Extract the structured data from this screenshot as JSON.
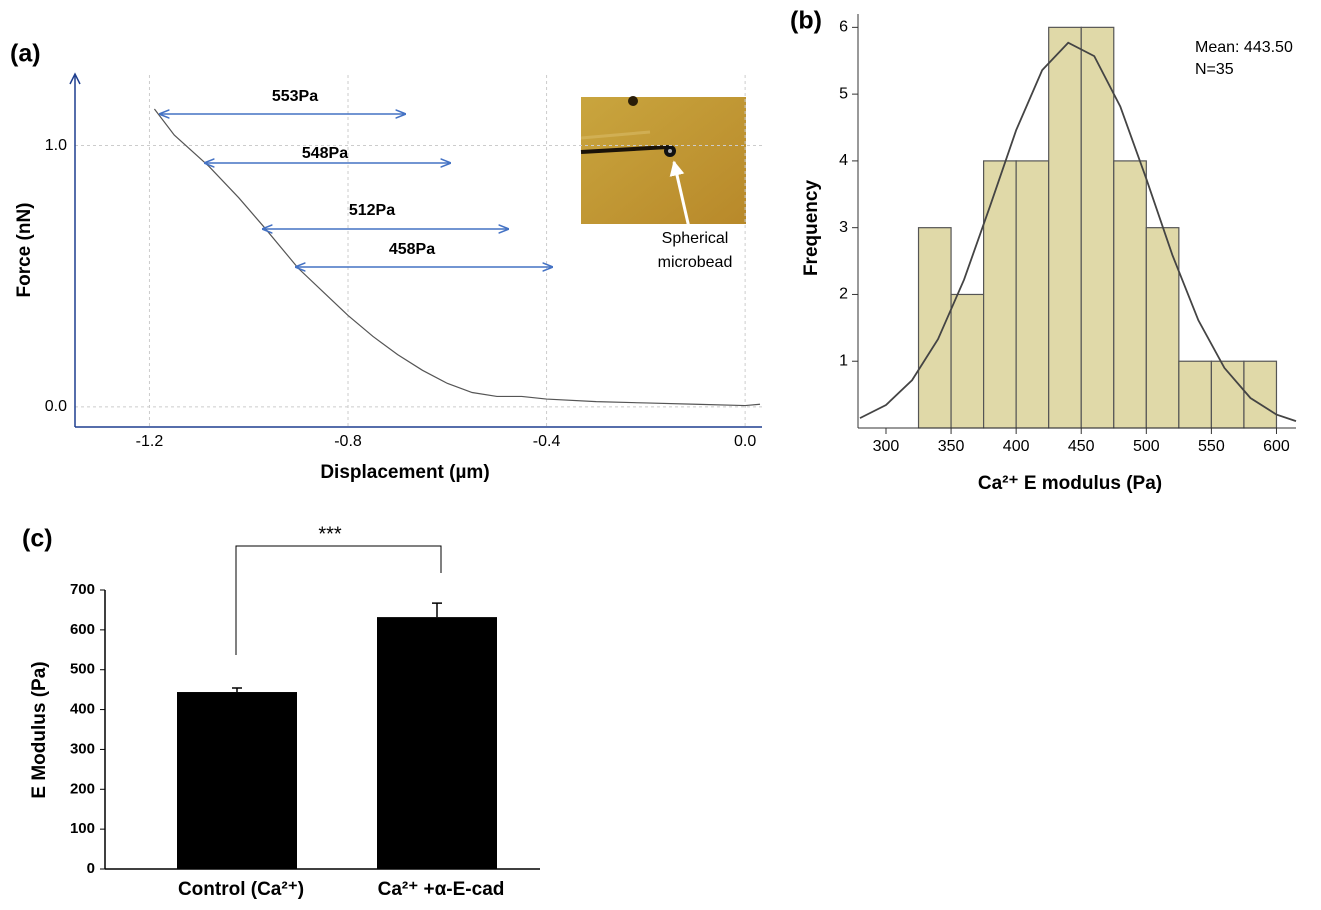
{
  "chart_data": [
    {
      "type": "line",
      "panel_label": "(a)",
      "xlabel": "Displacement (µm)",
      "ylabel": "Force (nN)",
      "x": [
        -1.19,
        -1.15,
        -1.08,
        -1.02,
        -0.97,
        -0.9,
        -0.85,
        -0.8,
        -0.75,
        -0.7,
        -0.65,
        -0.6,
        -0.55,
        -0.5,
        -0.45,
        -0.4,
        -0.3,
        -0.2,
        -0.1,
        0.0,
        0.03
      ],
      "values": [
        1.14,
        1.04,
        0.92,
        0.8,
        0.69,
        0.53,
        0.44,
        0.35,
        0.27,
        0.2,
        0.14,
        0.09,
        0.055,
        0.04,
        0.04,
        0.03,
        0.02,
        0.015,
        0.01,
        0.005,
        0.01
      ],
      "color": "#555555",
      "xlim": [
        -1.35,
        0.034
      ],
      "ylim": [
        -0.077,
        1.27
      ],
      "xticks": [
        -1.2,
        -0.8,
        -0.4,
        {
          "value": 0,
          "label": "0.0"
        }
      ],
      "yticks": [
        {
          "value": 0,
          "label": "0.0"
        },
        {
          "value": 1,
          "label": "1.0"
        }
      ],
      "grid": true,
      "annotations": [
        "553Pa",
        "548Pa",
        "512Pa",
        "458Pa"
      ],
      "inset_label": [
        "Spherical",
        "microbead"
      ]
    },
    {
      "type": "histogram",
      "panel_label": "(b)",
      "xlabel": "Ca²⁺ E modulus (Pa)",
      "ylabel": "Frequency",
      "bins": [
        325,
        350,
        375,
        400,
        425,
        450,
        475,
        500,
        525,
        550,
        575,
        600
      ],
      "values": [
        3,
        2,
        4,
        4,
        6,
        6,
        4,
        3,
        1,
        1,
        1
      ],
      "color": "#e0d9a8",
      "curve": {
        "x": [
          280,
          300,
          320,
          340,
          360,
          380,
          400,
          420,
          440,
          460,
          480,
          500,
          520,
          540,
          560,
          580,
          600,
          615
        ],
        "values": [
          0.148,
          0.344,
          0.715,
          1.332,
          2.223,
          3.326,
          4.46,
          5.359,
          5.77,
          5.569,
          4.815,
          3.732,
          2.592,
          1.613,
          0.9,
          0.449,
          0.201,
          0.103
        ],
        "color": "#444444"
      },
      "xlim": [
        278.5,
        615
      ],
      "ylim": [
        0,
        6.2
      ],
      "xticks": [
        300,
        350,
        400,
        450,
        500,
        550,
        600
      ],
      "yticks": [
        1,
        2,
        3,
        4,
        5,
        6
      ],
      "annotations": [
        "Mean: 443.50",
        "N=35"
      ]
    },
    {
      "type": "bar",
      "panel_label": "(c)",
      "ylabel": "E  Modulus (Pa)",
      "categories": [
        "Control (Ca²⁺)",
        "Ca²⁺ +α-E-cad"
      ],
      "values": [
        444,
        632
      ],
      "errors": [
        10,
        35
      ],
      "color": "#000000",
      "ylim": [
        0,
        700
      ],
      "yticks": [
        0,
        100,
        200,
        300,
        400,
        500,
        600,
        700
      ],
      "annotations": [
        "***"
      ]
    }
  ]
}
